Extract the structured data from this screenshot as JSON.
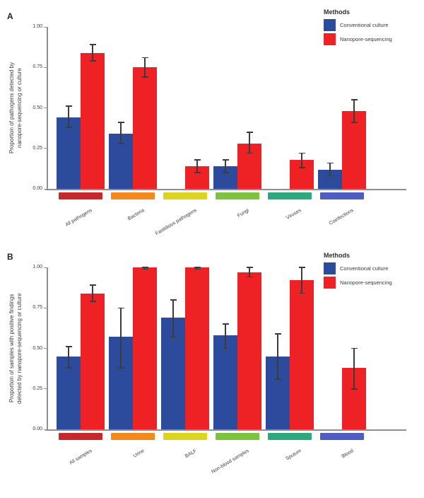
{
  "panels": [
    {
      "label": "A"
    },
    {
      "label": "B"
    }
  ],
  "legend": {
    "title": "Methods",
    "items": [
      {
        "label": "Conventional culture"
      },
      {
        "label": "Nanopore-sequencing"
      }
    ]
  },
  "colors": {
    "conventional_culture": "#2c4b9d",
    "nanopore_sequencing": "#ee2124",
    "axis": "#8f8f8f",
    "error_bar": "#3c3c3c"
  },
  "chart_data": [
    {
      "type": "bar",
      "panel": "A",
      "ylabel": "Proportion of pathogens detected by\nnanopore-sequencing or culture",
      "xlabel": "",
      "ylim": [
        0,
        1
      ],
      "yticks": [
        "0.00",
        "0.25",
        "0.50",
        "0.75",
        "1.00"
      ],
      "grid": false,
      "legend_position": "top-right",
      "categories": [
        "All pathogens",
        "Bacteria",
        "Fastidious pathogens",
        "Fungi",
        "Viruses",
        "Coinfections"
      ],
      "category_colors": [
        "#c5292b",
        "#f28a1e",
        "#dfd321",
        "#7ec241",
        "#2ea87d",
        "#4d5dc0"
      ],
      "series": [
        {
          "name": "Conventional culture",
          "color": "#2c4b9d",
          "values": [
            0.44,
            0.34,
            null,
            0.14,
            null,
            0.12
          ],
          "err_low": [
            0.38,
            0.28,
            null,
            0.1,
            null,
            0.08
          ],
          "err_high": [
            0.51,
            0.41,
            null,
            0.18,
            null,
            0.16
          ]
        },
        {
          "name": "Nanopore-sequencing",
          "color": "#ee2124",
          "values": [
            0.84,
            0.75,
            0.14,
            0.28,
            0.18,
            0.48
          ],
          "err_low": [
            0.79,
            0.69,
            0.1,
            0.22,
            0.13,
            0.41
          ],
          "err_high": [
            0.89,
            0.81,
            0.18,
            0.35,
            0.22,
            0.55
          ]
        }
      ]
    },
    {
      "type": "bar",
      "panel": "B",
      "ylabel": "Proportion of samples with positive findings\ndetected by nanopore-sequencing or culture",
      "xlabel": "",
      "ylim": [
        0,
        1
      ],
      "yticks": [
        "0.00",
        "0.25",
        "0.50",
        "0.75",
        "1.00"
      ],
      "grid": false,
      "legend_position": "top-right",
      "categories": [
        "All samples",
        "Urine",
        "BALF",
        "Non-blood samples",
        "Sputum",
        "Blood"
      ],
      "category_colors": [
        "#c5292b",
        "#f28a1e",
        "#dfd321",
        "#7ec241",
        "#2ea87d",
        "#4d5dc0"
      ],
      "series": [
        {
          "name": "Conventional culture",
          "color": "#2c4b9d",
          "values": [
            0.45,
            0.57,
            0.69,
            0.58,
            0.45,
            null
          ],
          "err_low": [
            0.38,
            0.38,
            0.57,
            0.5,
            0.31,
            null
          ],
          "err_high": [
            0.51,
            0.75,
            0.8,
            0.65,
            0.59,
            null
          ]
        },
        {
          "name": "Nanopore-sequencing",
          "color": "#ee2124",
          "values": [
            0.84,
            1.0,
            1.0,
            0.97,
            0.92,
            0.38
          ],
          "err_low": [
            0.79,
            0.99,
            0.99,
            0.94,
            0.84,
            0.25
          ],
          "err_high": [
            0.89,
            1.0,
            1.0,
            1.0,
            1.0,
            0.5
          ]
        }
      ]
    }
  ]
}
